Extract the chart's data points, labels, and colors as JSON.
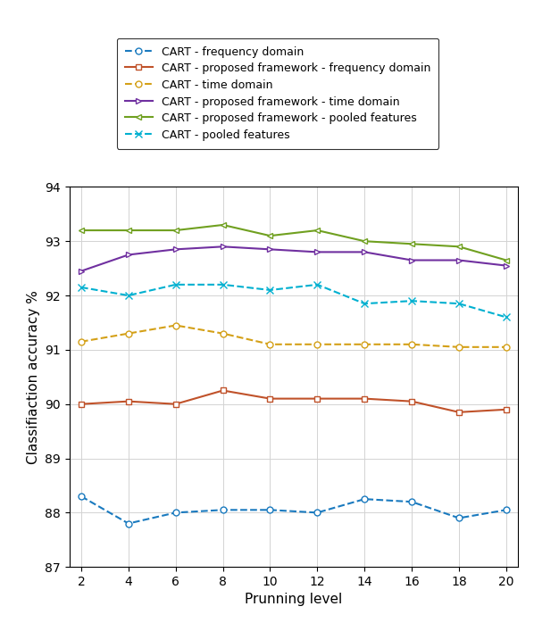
{
  "x": [
    2,
    4,
    6,
    8,
    10,
    12,
    14,
    16,
    18,
    20
  ],
  "series": {
    "cart_freq": {
      "label": "CART - frequency domain",
      "color": "#1a7abf",
      "linestyle": "--",
      "marker": "o",
      "markerfacecolor": "white",
      "markersize": 5,
      "linewidth": 1.5,
      "values": [
        88.3,
        87.8,
        88.0,
        88.05,
        88.05,
        88.0,
        88.25,
        88.2,
        87.9,
        88.05
      ]
    },
    "cart_prop_freq": {
      "label": "CART - proposed framework - frequency domain",
      "color": "#c0522a",
      "linestyle": "-",
      "marker": "s",
      "markerfacecolor": "white",
      "markersize": 5,
      "linewidth": 1.5,
      "values": [
        90.0,
        90.05,
        90.0,
        90.25,
        90.1,
        90.1,
        90.1,
        90.05,
        89.85,
        89.9
      ]
    },
    "cart_time": {
      "label": "CART - time domain",
      "color": "#d4a017",
      "linestyle": "--",
      "marker": "o",
      "markerfacecolor": "white",
      "markersize": 5,
      "linewidth": 1.5,
      "values": [
        91.15,
        91.3,
        91.45,
        91.3,
        91.1,
        91.1,
        91.1,
        91.1,
        91.05,
        91.05
      ]
    },
    "cart_prop_time": {
      "label": "CART - proposed framework - time domain",
      "color": "#7030a0",
      "linestyle": "-",
      "marker": ">",
      "markerfacecolor": "white",
      "markersize": 5,
      "linewidth": 1.5,
      "values": [
        92.45,
        92.75,
        92.85,
        92.9,
        92.85,
        92.8,
        92.8,
        92.65,
        92.65,
        92.55
      ]
    },
    "cart_prop_pooled": {
      "label": "CART - proposed framework - pooled features",
      "color": "#70a020",
      "linestyle": "-",
      "marker": "<",
      "markerfacecolor": "white",
      "markersize": 5,
      "linewidth": 1.5,
      "values": [
        93.2,
        93.2,
        93.2,
        93.3,
        93.1,
        93.2,
        93.0,
        92.95,
        92.9,
        92.65
      ]
    },
    "cart_pooled": {
      "label": "CART - pooled features",
      "color": "#00b0d0",
      "linestyle": "--",
      "marker": "x",
      "markerfacecolor": "#00b0d0",
      "markersize": 6,
      "linewidth": 1.5,
      "values": [
        92.15,
        92.0,
        92.2,
        92.2,
        92.1,
        92.2,
        91.85,
        91.9,
        91.85,
        91.6
      ]
    }
  },
  "xlabel": "Prunning level",
  "ylabel": "Classifiaction accuracy %",
  "xlim": [
    1.5,
    20.5
  ],
  "ylim": [
    87,
    94
  ],
  "yticks": [
    87,
    88,
    89,
    90,
    91,
    92,
    93,
    94
  ],
  "xticks": [
    2,
    4,
    6,
    8,
    10,
    12,
    14,
    16,
    18,
    20
  ],
  "grid": true,
  "figsize": [
    5.98,
    6.98
  ],
  "dpi": 100
}
